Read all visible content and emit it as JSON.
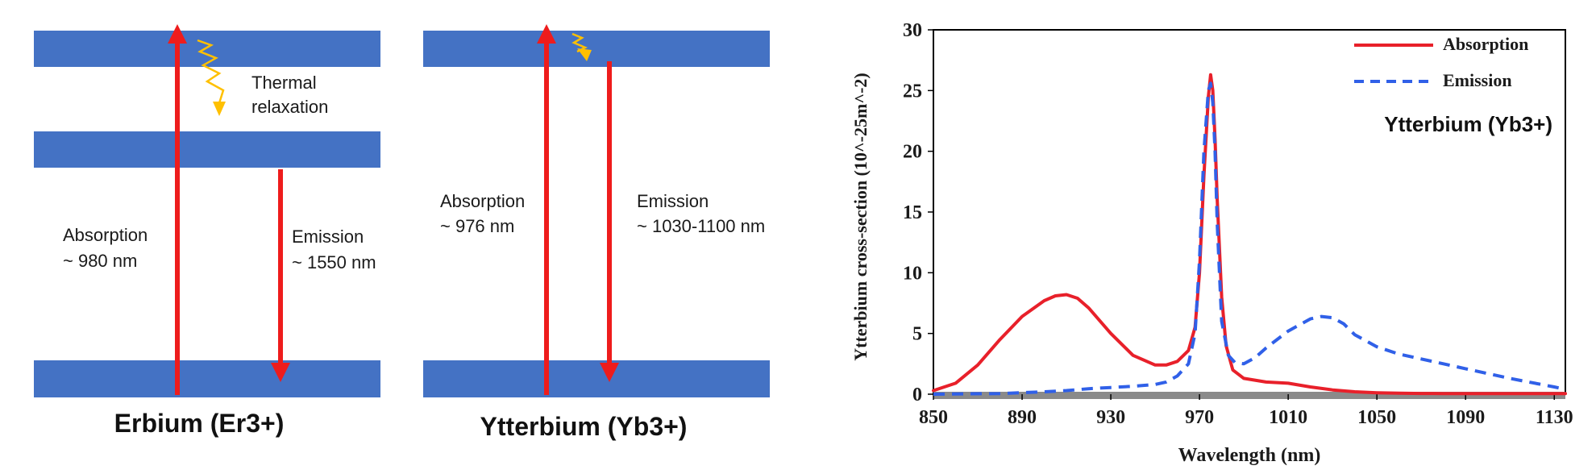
{
  "colors": {
    "band": "#4472c4",
    "arrow": "#ee1c1c",
    "relax": "#ffc000",
    "absorption_line": "#e8202a",
    "emission_line": "#3060e8"
  },
  "erbium": {
    "title": "Erbium (Er3+)",
    "relax_line1": "Thermal",
    "relax_line2": "relaxation",
    "abs_line1": "Absorption",
    "abs_line2": "~ 980 nm",
    "em_line1": "Emission",
    "em_line2": "~ 1550 nm"
  },
  "ytterbium": {
    "title": "Ytterbium (Yb3+)",
    "abs_line1": "Absorption",
    "abs_line2": "~ 976 nm",
    "em_line1": "Emission",
    "em_line2": "~ 1030-1100 nm"
  },
  "chart_data": {
    "type": "line",
    "title": "",
    "annotation": "Ytterbium (Yb3+)",
    "xlabel": "Wavelength (nm)",
    "ylabel": "Ytterbium cross-section (10^-25m^-2)",
    "xlim": [
      850,
      1135
    ],
    "ylim": [
      0,
      30
    ],
    "xticks": [
      850,
      890,
      930,
      970,
      1010,
      1050,
      1090,
      1130
    ],
    "yticks": [
      0,
      5,
      10,
      15,
      20,
      25,
      30
    ],
    "legend_position": "top-right",
    "grid": false,
    "series": [
      {
        "name": "Absorption",
        "style": "solid",
        "color": "#e8202a",
        "x": [
          850,
          860,
          870,
          880,
          890,
          900,
          905,
          910,
          915,
          920,
          930,
          940,
          950,
          955,
          960,
          965,
          968,
          970,
          972,
          974,
          975,
          976,
          977,
          978,
          980,
          982,
          985,
          990,
          1000,
          1010,
          1020,
          1030,
          1040,
          1050,
          1060,
          1070,
          1080,
          1090,
          1100,
          1110,
          1120,
          1130,
          1135
        ],
        "y": [
          0.3,
          0.9,
          2.4,
          4.5,
          6.4,
          7.7,
          8.1,
          8.2,
          7.9,
          7.1,
          5.0,
          3.2,
          2.4,
          2.4,
          2.7,
          3.6,
          5.5,
          10,
          18,
          24.5,
          26.3,
          25,
          21,
          16,
          8,
          4,
          2,
          1.3,
          1.0,
          0.9,
          0.6,
          0.35,
          0.2,
          0.12,
          0.08,
          0.06,
          0.05,
          0.05,
          0.05,
          0.05,
          0.05,
          0.05,
          0.05
        ]
      },
      {
        "name": "Emission",
        "style": "dashed",
        "color": "#3060e8",
        "x": [
          850,
          880,
          900,
          910,
          920,
          930,
          940,
          950,
          955,
          960,
          965,
          968,
          970,
          972,
          974,
          975,
          976,
          977,
          978,
          980,
          983,
          986,
          990,
          995,
          1000,
          1010,
          1020,
          1025,
          1030,
          1035,
          1040,
          1050,
          1060,
          1070,
          1080,
          1090,
          1100,
          1110,
          1120,
          1130,
          1135
        ],
        "y": [
          0.0,
          0.05,
          0.2,
          0.3,
          0.45,
          0.55,
          0.65,
          0.8,
          1.0,
          1.5,
          2.5,
          5,
          11,
          20,
          25.0,
          25.6,
          24,
          20,
          14,
          6,
          3.2,
          2.6,
          2.5,
          3.0,
          3.8,
          5.2,
          6.2,
          6.4,
          6.3,
          5.8,
          4.9,
          3.9,
          3.3,
          2.9,
          2.5,
          2.1,
          1.7,
          1.3,
          0.95,
          0.6,
          0.4
        ]
      }
    ]
  }
}
